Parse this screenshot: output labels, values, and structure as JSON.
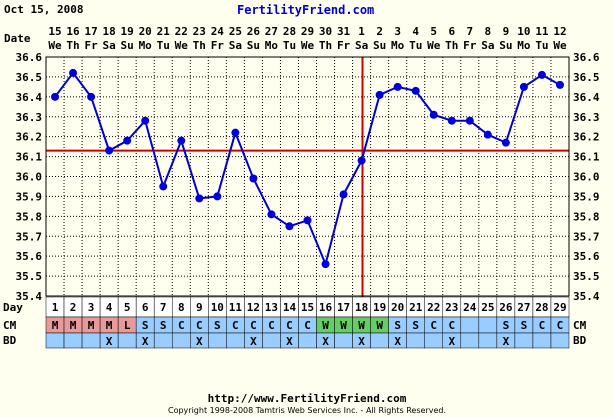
{
  "header": {
    "date_text": "Oct 15, 2008",
    "site_name": "FertilityFriend.com"
  },
  "footer": {
    "url": "http://www.FertilityFriend.com",
    "copyright": "Copyright 1998-2008 Tamtris Web Services Inc. - All Rights Reserved."
  },
  "colors": {
    "line": "#0000cc",
    "point": "#0000dd",
    "coverline": "#cc0000",
    "grid": "#000000",
    "plot_bg": "#fffff0",
    "row_bg": "#99ccff",
    "day_row_bg": "#ffffff",
    "menstrual": "#e89a9a",
    "fertile": "#66cc66"
  },
  "chart_data": {
    "type": "line",
    "title": "",
    "xlabel": "Day",
    "ylabel": "Date",
    "date_header_label": "Date",
    "dates": [
      "15",
      "16",
      "17",
      "18",
      "19",
      "20",
      "21",
      "22",
      "23",
      "24",
      "25",
      "26",
      "27",
      "28",
      "29",
      "30",
      "31",
      "1",
      "2",
      "3",
      "4",
      "5",
      "6",
      "7",
      "8",
      "9",
      "10",
      "11",
      "12"
    ],
    "weekdays": [
      "We",
      "Th",
      "Fr",
      "Sa",
      "Su",
      "Mo",
      "Tu",
      "We",
      "Th",
      "Fr",
      "Sa",
      "Su",
      "Mo",
      "Tu",
      "We",
      "Th",
      "Fr",
      "Sa",
      "Su",
      "Mo",
      "Tu",
      "We",
      "Th",
      "Fr",
      "Sa",
      "Su",
      "Mo",
      "Tu",
      "We"
    ],
    "cycle_days": [
      "1",
      "2",
      "3",
      "4",
      "5",
      "6",
      "7",
      "8",
      "9",
      "10",
      "11",
      "12",
      "13",
      "14",
      "15",
      "16",
      "17",
      "18",
      "19",
      "20",
      "21",
      "22",
      "23",
      "24",
      "25",
      "26",
      "27",
      "28",
      "29"
    ],
    "temperatures": [
      36.4,
      36.52,
      36.4,
      36.13,
      36.18,
      36.28,
      35.95,
      36.18,
      35.89,
      35.9,
      36.22,
      35.99,
      35.81,
      35.75,
      35.78,
      35.56,
      35.91,
      36.08,
      36.41,
      36.45,
      36.43,
      36.31,
      36.28,
      36.28,
      36.21,
      36.17,
      36.45,
      36.51,
      36.46
    ],
    "ylim": [
      35.4,
      36.6
    ],
    "y_ticks": [
      "35.4",
      "35.5",
      "35.6",
      "35.7",
      "35.8",
      "35.9",
      "36.0",
      "36.1",
      "36.2",
      "36.3",
      "36.4",
      "36.5",
      "36.6"
    ],
    "coverline": 36.13,
    "ovulation_day_index": 17,
    "grid": true,
    "cm_label": "CM",
    "cm": [
      "M",
      "M",
      "M",
      "M",
      "L",
      "S",
      "S",
      "C",
      "C",
      "S",
      "C",
      "C",
      "C",
      "C",
      "C",
      "W",
      "W",
      "W",
      "W",
      "S",
      "S",
      "C",
      "C",
      "",
      "",
      "S",
      "S",
      "C",
      "C"
    ],
    "bd_label": "BD",
    "bd": [
      "",
      "",
      "",
      "X",
      "",
      "X",
      "",
      "",
      "X",
      "",
      "",
      "X",
      "",
      "X",
      "",
      "X",
      "",
      "X",
      "",
      "X",
      "",
      "",
      "X",
      "",
      "",
      "X",
      "",
      "",
      ""
    ]
  }
}
